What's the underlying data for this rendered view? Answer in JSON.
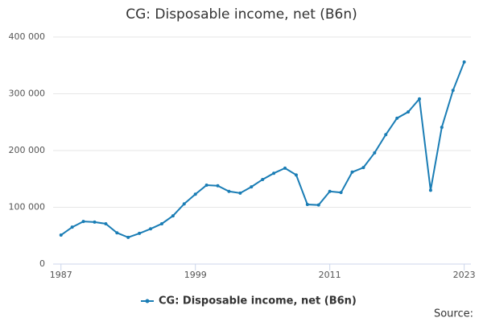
{
  "chart_data": {
    "type": "line",
    "title": "CG: Disposable income, net (B6n)",
    "source": "Source:",
    "x": [
      1987,
      1988,
      1989,
      1990,
      1991,
      1992,
      1993,
      1994,
      1995,
      1996,
      1997,
      1998,
      1999,
      2000,
      2001,
      2002,
      2003,
      2004,
      2005,
      2006,
      2007,
      2008,
      2009,
      2010,
      2011,
      2012,
      2013,
      2014,
      2015,
      2016,
      2017,
      2018,
      2019,
      2020,
      2021,
      2022,
      2023
    ],
    "series": [
      {
        "name": "CG: Disposable income, net (B6n)",
        "color": "#1a7db5",
        "values": [
          51000,
          65000,
          75000,
          74000,
          71000,
          55000,
          47000,
          54000,
          62000,
          71000,
          85000,
          106000,
          123000,
          139000,
          138000,
          128000,
          125000,
          136000,
          149000,
          160000,
          169000,
          157000,
          105000,
          104000,
          128000,
          126000,
          162000,
          170000,
          196000,
          228000,
          257000,
          268000,
          291000,
          130000,
          241000,
          306000,
          356000
        ]
      }
    ],
    "xlim": [
      1986.3,
      2023.6
    ],
    "xticks": [
      1987,
      1999,
      2011,
      2023
    ],
    "ylim": [
      0,
      400000
    ],
    "yticks": [
      0,
      {
        "value": 100000,
        "label": "100 000"
      },
      {
        "value": 200000,
        "label": "200 000"
      },
      {
        "value": 300000,
        "label": "300 000"
      },
      {
        "value": 400000,
        "label": "400 000"
      }
    ],
    "grid": true
  }
}
